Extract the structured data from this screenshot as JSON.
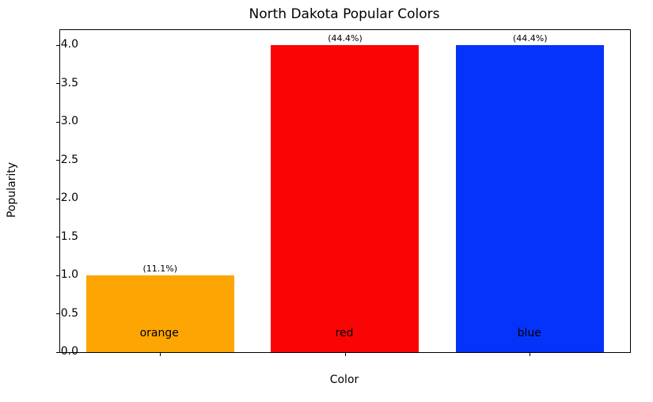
{
  "chart_data": {
    "type": "bar",
    "title": "North Dakota Popular Colors",
    "xlabel": "Color",
    "ylabel": "Popularity",
    "categories": [
      "orange",
      "red",
      "blue"
    ],
    "values": [
      1.0,
      4.0,
      4.0
    ],
    "bar_labels": [
      "(11.1%)",
      "(44.4%)",
      "(44.4%)"
    ],
    "bar_colors": [
      "#fca503",
      "#fa0505",
      "#0533fa"
    ],
    "ylim": [
      0,
      4.2
    ],
    "yticks": [
      0.0,
      0.5,
      1.0,
      1.5,
      2.0,
      2.5,
      3.0,
      3.5,
      4.0
    ],
    "ytick_labels": [
      "0.0",
      "0.5",
      "1.0",
      "1.5",
      "2.0",
      "2.5",
      "3.0",
      "3.5",
      "4.0"
    ],
    "grid": false,
    "legend": "none",
    "background_color": "#ffffff",
    "text_color": "#000000"
  }
}
